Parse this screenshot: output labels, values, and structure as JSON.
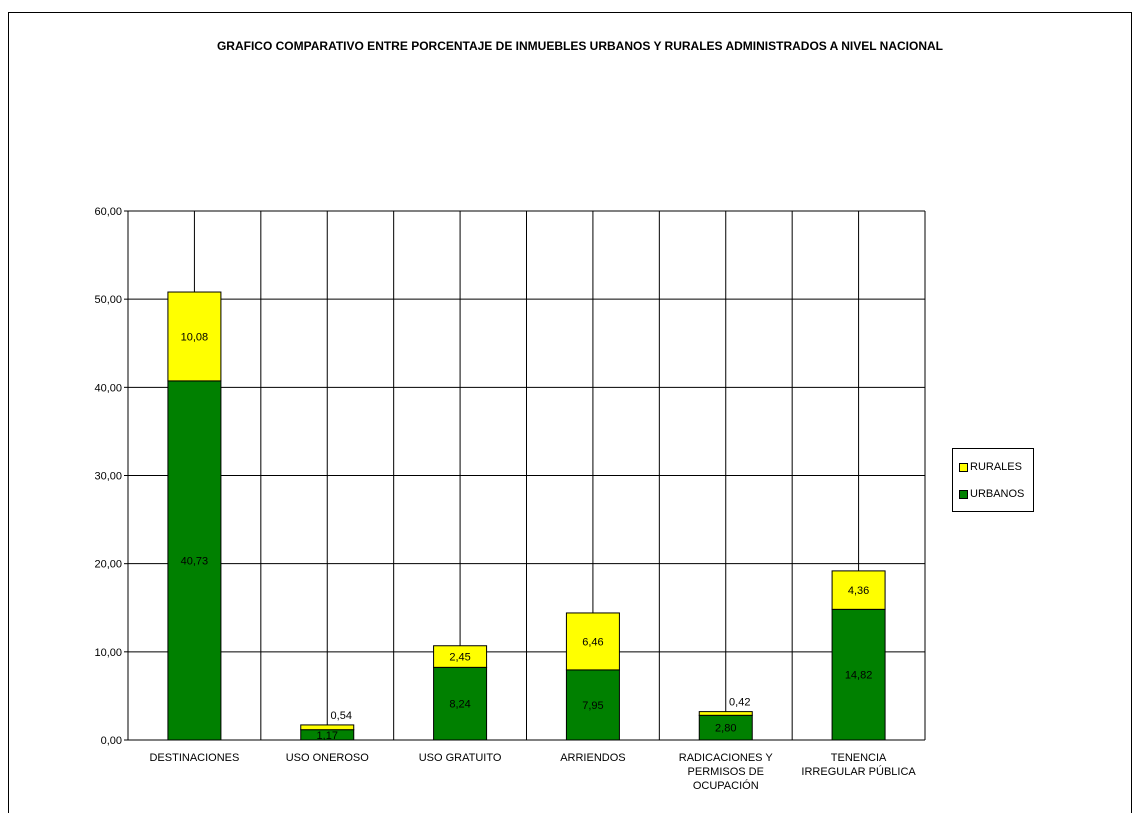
{
  "chart_data": {
    "type": "bar",
    "stacked": true,
    "title": "GRAFICO COMPARATIVO ENTRE PORCENTAJE DE INMUEBLES URBANOS Y RURALES ADMINISTRADOS A NIVEL NACIONAL",
    "categories": [
      [
        "DESTINACIONES"
      ],
      [
        "USO ONEROSO"
      ],
      [
        "USO GRATUITO"
      ],
      [
        "ARRIENDOS"
      ],
      [
        "RADICACIONES Y",
        "PERMISOS DE",
        "OCUPACIÓN"
      ],
      [
        "TENENCIA",
        "IRREGULAR PÚBLICA"
      ]
    ],
    "series": [
      {
        "name": "URBANOS",
        "color": "#008000",
        "values": [
          40.73,
          1.17,
          8.24,
          7.95,
          2.8,
          14.82
        ],
        "labels": [
          "40,73",
          "1,17",
          "8,24",
          "7,95",
          "2,80",
          "14,82"
        ]
      },
      {
        "name": "RURALES",
        "color": "#ffff00",
        "values": [
          10.08,
          0.54,
          2.45,
          6.46,
          0.42,
          4.36
        ],
        "labels": [
          "10,08",
          "0,54",
          "2,45",
          "6,46",
          "0,42",
          "4,36"
        ]
      }
    ],
    "ylim": [
      0,
      60
    ],
    "yticks": [
      "0,00",
      "10,00",
      "20,00",
      "30,00",
      "40,00",
      "50,00",
      "60,00"
    ],
    "grid": true,
    "legend_position": "right"
  }
}
